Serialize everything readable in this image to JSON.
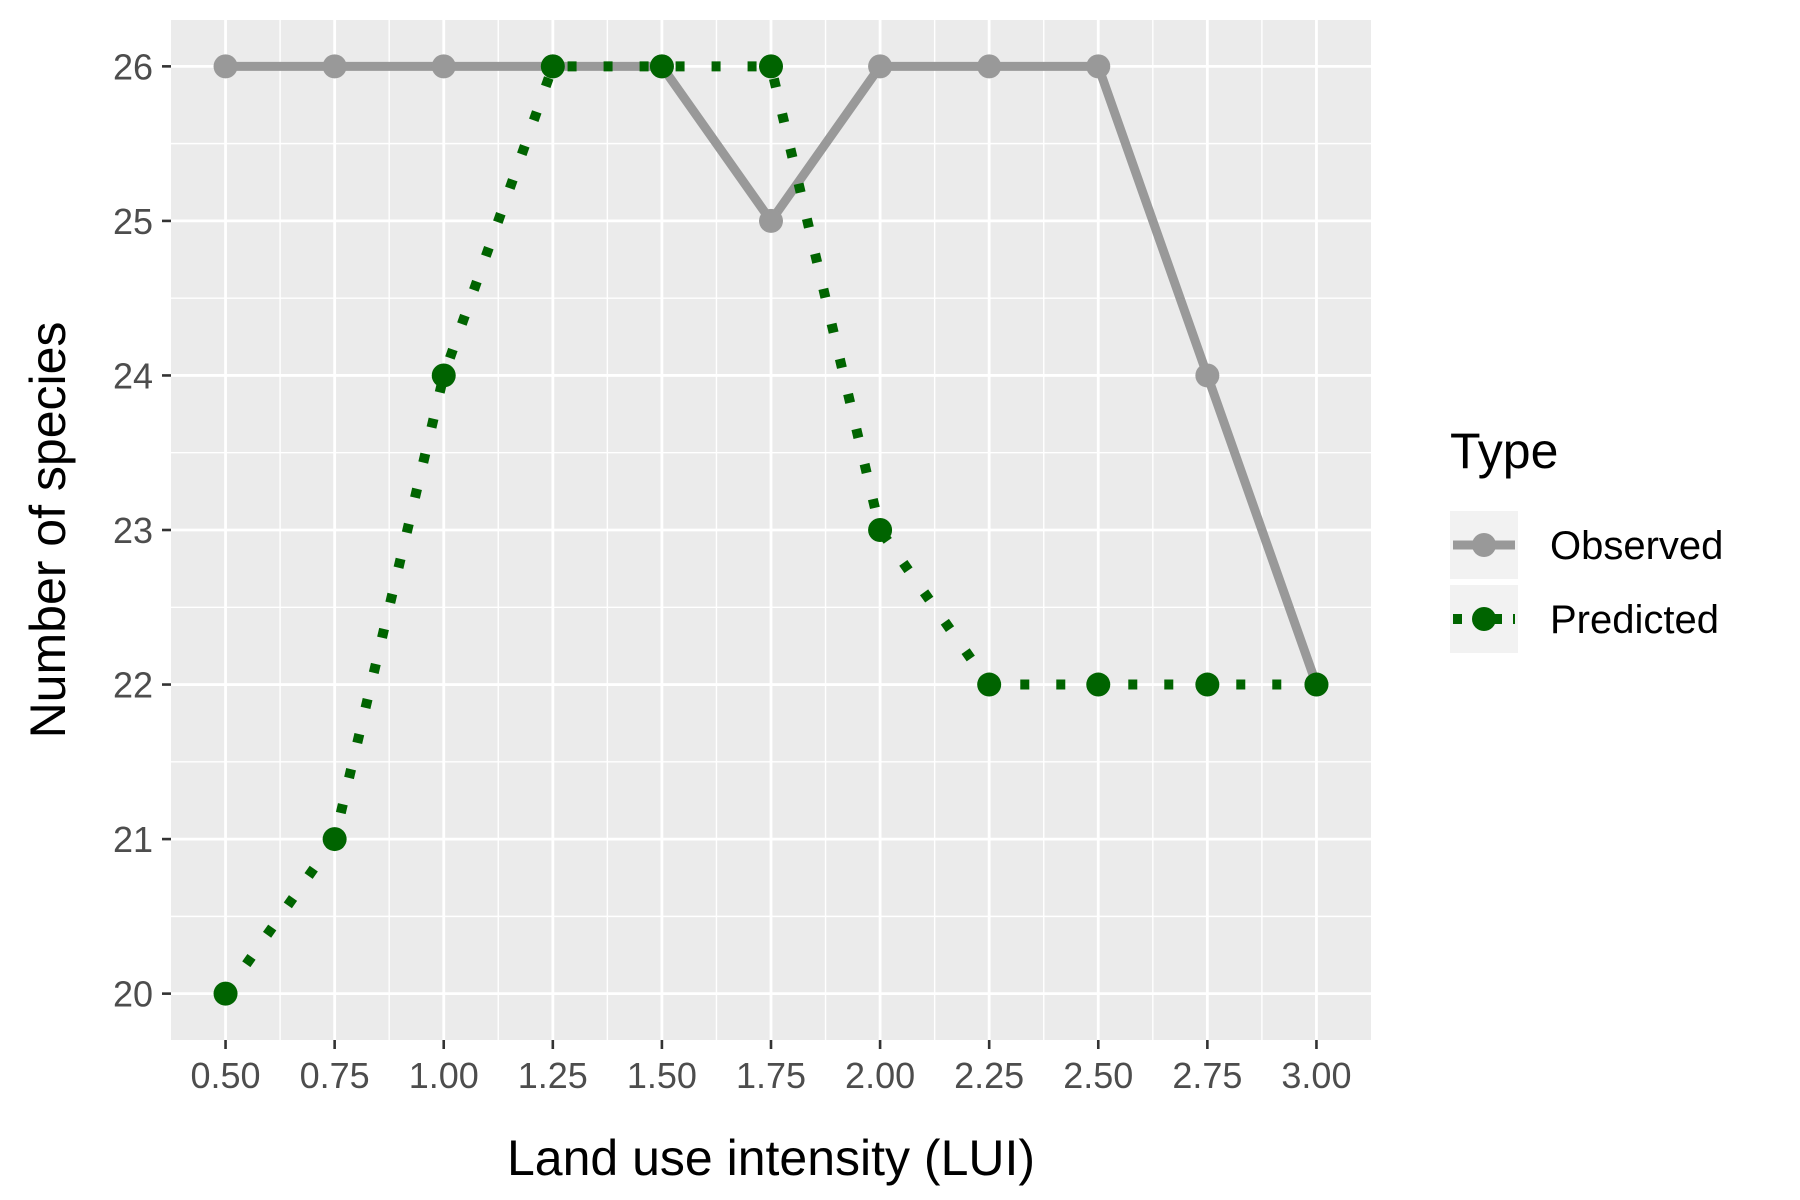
{
  "chart_data": {
    "type": "line",
    "x": [
      0.5,
      0.75,
      1.0,
      1.25,
      1.5,
      1.75,
      2.0,
      2.25,
      2.5,
      2.75,
      3.0
    ],
    "x_tick_labels": [
      "0.50",
      "0.75",
      "1.00",
      "1.25",
      "1.50",
      "1.75",
      "2.00",
      "2.25",
      "2.50",
      "2.75",
      "3.00"
    ],
    "y_ticks": [
      20,
      21,
      22,
      23,
      24,
      25,
      26
    ],
    "y_tick_labels": [
      "20",
      "21",
      "22",
      "23",
      "24",
      "25",
      "26"
    ],
    "xlim": [
      0.375,
      3.125
    ],
    "ylim": [
      19.7,
      26.3
    ],
    "xlabel": "Land use intensity (LUI)",
    "ylabel": "Number of species",
    "grid": true,
    "panel_background": "#ebebeb",
    "legend": {
      "title": "Type",
      "placement": "right"
    },
    "series": [
      {
        "name": "Observed",
        "values": [
          26,
          26,
          26,
          26,
          26,
          25,
          26,
          26,
          26,
          24,
          22
        ],
        "color": "#999999",
        "line_style": "solid"
      },
      {
        "name": "Predicted",
        "values": [
          20,
          21,
          24,
          26,
          26,
          26,
          23,
          22,
          22,
          22,
          22
        ],
        "color": "#006400",
        "line_style": "dotted"
      }
    ]
  }
}
